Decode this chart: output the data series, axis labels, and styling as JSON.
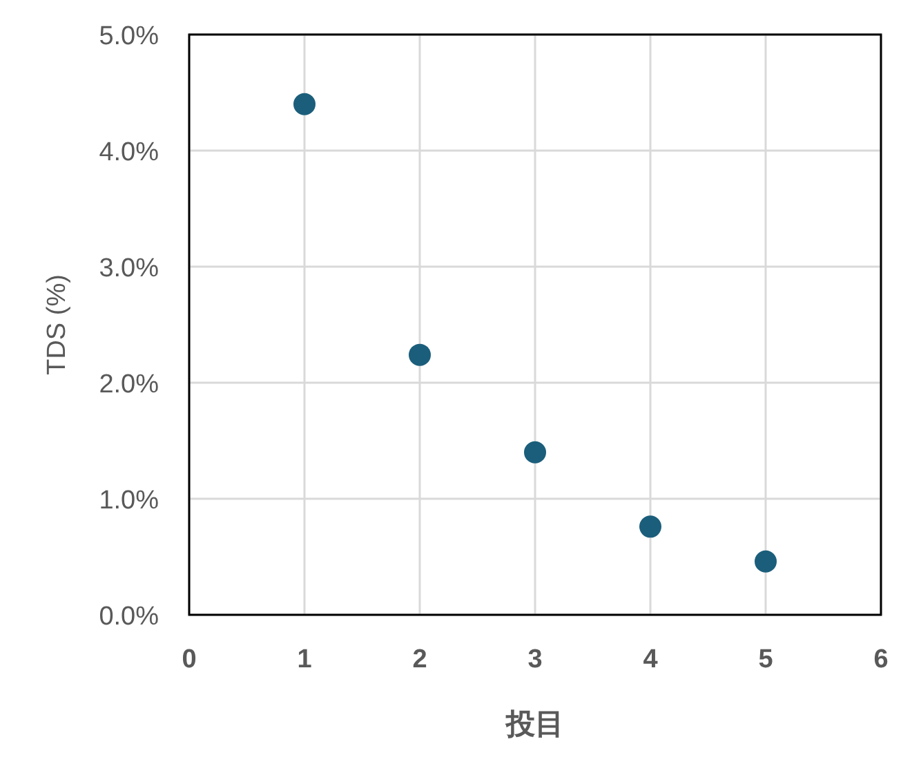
{
  "chart_data": {
    "type": "scatter",
    "xlabel": "投目",
    "ylabel": "TDS (%)",
    "x": [
      1,
      2,
      3,
      4,
      5
    ],
    "series": [
      {
        "color": "#1b5e7b",
        "values": [
          4.4,
          2.24,
          1.4,
          0.76,
          0.46
        ]
      }
    ],
    "xlim": [
      0,
      6
    ],
    "xticks": [
      0,
      1,
      2,
      3,
      4,
      5,
      6
    ],
    "ylim": [
      0,
      5
    ],
    "yticks": [
      {
        "value": 0,
        "label": "0.0%"
      },
      {
        "value": 1,
        "label": "1.0%"
      },
      {
        "value": 2,
        "label": "2.0%"
      },
      {
        "value": 3,
        "label": "3.0%"
      },
      {
        "value": 4,
        "label": "4.0%"
      },
      {
        "value": 5,
        "label": "5.0%"
      }
    ],
    "grid": true,
    "marker": "circle"
  }
}
